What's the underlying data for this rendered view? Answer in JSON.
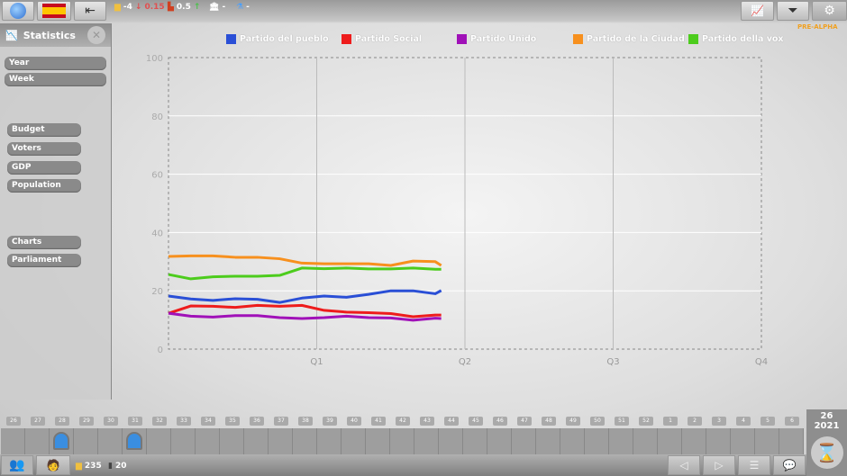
{
  "topbar": {
    "country": "Spain",
    "resources": [
      {
        "icon": "gold-icon",
        "value": "-4",
        "delta": "0.15",
        "delta_dir": "down",
        "color": "#e05050"
      },
      {
        "icon": "factory-icon",
        "value": "0.5",
        "delta_dir": "up",
        "color": "#4cc04c"
      },
      {
        "icon": "bank-icon",
        "value": "-"
      },
      {
        "icon": "flask-icon",
        "value": "-"
      }
    ],
    "build_label": "PRE-ALPHA"
  },
  "sidebar": {
    "title": "Statistics",
    "top_items": [
      "Year",
      "Week"
    ],
    "stats_items": [
      "Budget",
      "Voters",
      "GDP",
      "Population"
    ],
    "view_items": [
      "Charts",
      "Parliament"
    ]
  },
  "chart_data": {
    "type": "line",
    "title": "",
    "xlabel": "",
    "ylabel": "",
    "ylim": [
      0,
      100
    ],
    "xlim": [
      0,
      4
    ],
    "yticks": [
      "0",
      "20",
      "40",
      "60",
      "80",
      "100"
    ],
    "xticks": [
      {
        "x": 1,
        "label": "Q1"
      },
      {
        "x": 2,
        "label": "Q2"
      },
      {
        "x": 3,
        "label": "Q3"
      },
      {
        "x": 4,
        "label": "Q4"
      }
    ],
    "grid": true,
    "legend": "top",
    "x": [
      0,
      0.15,
      0.3,
      0.45,
      0.6,
      0.75,
      0.9,
      1.05,
      1.2,
      1.35,
      1.5,
      1.65,
      1.8,
      1.84
    ],
    "series": [
      {
        "name": "Partido del pueblo",
        "color": "#2a4fd6",
        "values": [
          18.2,
          17.2,
          16.7,
          17.3,
          17.1,
          16,
          17.5,
          18.2,
          17.8,
          18.8,
          20,
          20,
          19,
          20.1
        ]
      },
      {
        "name": "Partido Social",
        "color": "#ee1c1c",
        "values": [
          12.3,
          14.8,
          14.7,
          14.3,
          15,
          14.7,
          15,
          13.3,
          12.7,
          12.5,
          12.2,
          11.1,
          11.7,
          11.7
        ]
      },
      {
        "name": "Partido Unido",
        "color": "#a011b8",
        "values": [
          12.3,
          11.3,
          11,
          11.5,
          11.5,
          10.8,
          10.5,
          10.8,
          11.3,
          10.8,
          10.7,
          9.9,
          10.6,
          10.5
        ]
      },
      {
        "name": "Partido de la Ciudad",
        "color": "#f7901e",
        "values": [
          31.8,
          32,
          32,
          31.5,
          31.5,
          31,
          29.5,
          29.3,
          29.3,
          29.3,
          28.7,
          30.2,
          30,
          28.7
        ]
      },
      {
        "name": "Partido della vox",
        "color": "#4ccc1c",
        "values": [
          25.6,
          24.1,
          24.8,
          25,
          25,
          25.3,
          27.8,
          27.6,
          27.8,
          27.5,
          27.5,
          27.8,
          27.4,
          27.4
        ]
      }
    ]
  },
  "timeline": {
    "weeks": [
      "26",
      "27",
      "28",
      "29",
      "30",
      "31",
      "32",
      "33",
      "34",
      "35",
      "36",
      "37",
      "38",
      "39",
      "40",
      "41",
      "42",
      "43",
      "44",
      "45",
      "46",
      "47",
      "48",
      "49",
      "50",
      "51",
      "52",
      "1",
      "2",
      "3",
      "4",
      "5",
      "6"
    ]
  },
  "bottom": {
    "money": "235",
    "count": "20"
  },
  "date": {
    "week": "26",
    "year": "2021"
  }
}
